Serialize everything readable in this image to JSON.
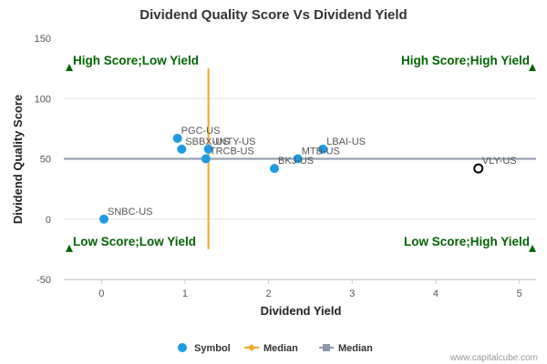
{
  "chart_data": {
    "type": "scatter",
    "title": "Dividend Quality Score Vs Dividend Yield",
    "xlabel": "Dividend Yield",
    "ylabel": "Dividend Quality Score",
    "xlim": [
      -0.45,
      5.2
    ],
    "ylim": [
      -50,
      150
    ],
    "xticks": [
      0,
      1,
      2,
      3,
      4,
      5
    ],
    "yticks": [
      -50,
      0,
      50,
      100,
      150
    ],
    "points": [
      {
        "name": "PGC-US",
        "x": 0.91,
        "y": 67,
        "highlight": false
      },
      {
        "name": "SBBX-US",
        "x": 0.96,
        "y": 58,
        "highlight": false
      },
      {
        "name": "UNTY-US",
        "x": 1.28,
        "y": 58,
        "highlight": false
      },
      {
        "name": "TRCB-US",
        "x": 1.25,
        "y": 50,
        "highlight": false
      },
      {
        "name": "LBAI-US",
        "x": 2.65,
        "y": 58,
        "highlight": false
      },
      {
        "name": "MTB-US",
        "x": 2.35,
        "y": 50,
        "highlight": false
      },
      {
        "name": "BKJ-US",
        "x": 2.07,
        "y": 42,
        "highlight": false
      },
      {
        "name": "SNBC-US",
        "x": 0.03,
        "y": 0,
        "highlight": false
      },
      {
        "name": "VLY-US",
        "x": 4.51,
        "y": 42,
        "highlight": true
      }
    ],
    "median_x": 1.28,
    "median_y": 50,
    "corner_labels": {
      "top_left": "High Score;Low Yield",
      "top_right": "High Score;High Yield",
      "bottom_left": "Low Score;Low Yield",
      "bottom_right": "Low Score;High Yield"
    },
    "legend": [
      {
        "label": "Symbol",
        "kind": "dot"
      },
      {
        "label": "Median",
        "kind": "diamond"
      },
      {
        "label": "Median",
        "kind": "square"
      }
    ],
    "colors": {
      "point": "#1e9be3",
      "highlight_stroke": "#000000",
      "median_v": "#f5a623",
      "median_h": "#8f98ab",
      "corner": "#006400"
    }
  },
  "credit": "www.capitalcube.com"
}
